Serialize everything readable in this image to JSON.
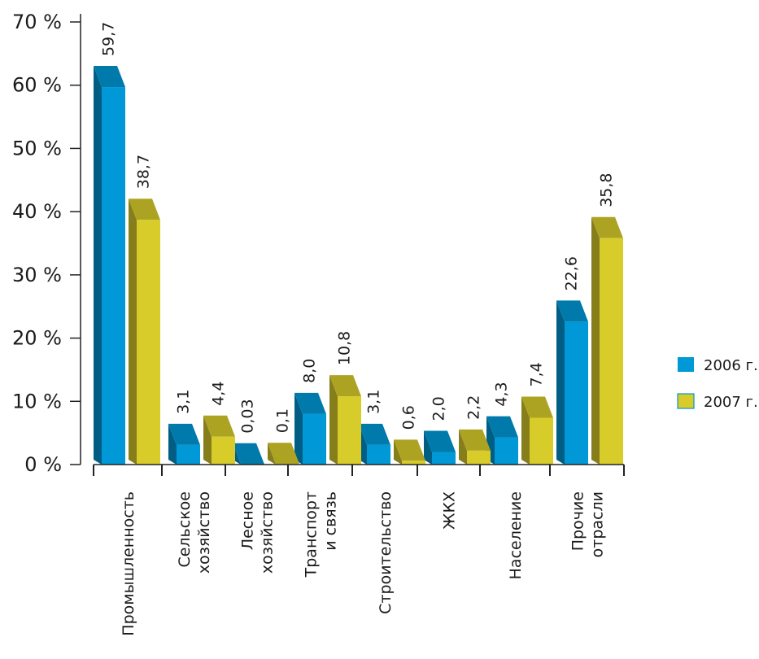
{
  "chart_data": {
    "type": "bar",
    "title": "",
    "xlabel": "",
    "ylabel": "",
    "ylim": [
      0,
      70
    ],
    "yticks": [
      "0 %",
      "10 %",
      "20 %",
      "30 %",
      "40 %",
      "50 %",
      "60 %",
      "70 %"
    ],
    "categories": [
      [
        "Промышленность"
      ],
      [
        "Сельское",
        "хозяйство"
      ],
      [
        "Лесное",
        "хозяйство"
      ],
      [
        "Транспорт",
        "и связь"
      ],
      [
        "Строительство"
      ],
      [
        "ЖКХ"
      ],
      [
        "Население"
      ],
      [
        "Прочие",
        "отрасли"
      ]
    ],
    "series": [
      {
        "name": "2006 г.",
        "color": "#0098d6",
        "values": [
          59.7,
          3.1,
          0.03,
          8.0,
          3.1,
          2.0,
          4.3,
          22.6
        ],
        "labels": [
          "59,7",
          "3,1",
          "0,03",
          "8,0",
          "3,1",
          "2,0",
          "4,3",
          "22,6"
        ]
      },
      {
        "name": "2007 г.",
        "color": "#d8cc2a",
        "values": [
          38.7,
          4.4,
          0.1,
          10.8,
          0.6,
          2.2,
          7.4,
          35.8
        ],
        "labels": [
          "38,7",
          "4,4",
          "0,1",
          "10,8",
          "0,6",
          "2,2",
          "7,4",
          "35,8"
        ]
      }
    ],
    "grid": false,
    "legend_position": "right"
  }
}
